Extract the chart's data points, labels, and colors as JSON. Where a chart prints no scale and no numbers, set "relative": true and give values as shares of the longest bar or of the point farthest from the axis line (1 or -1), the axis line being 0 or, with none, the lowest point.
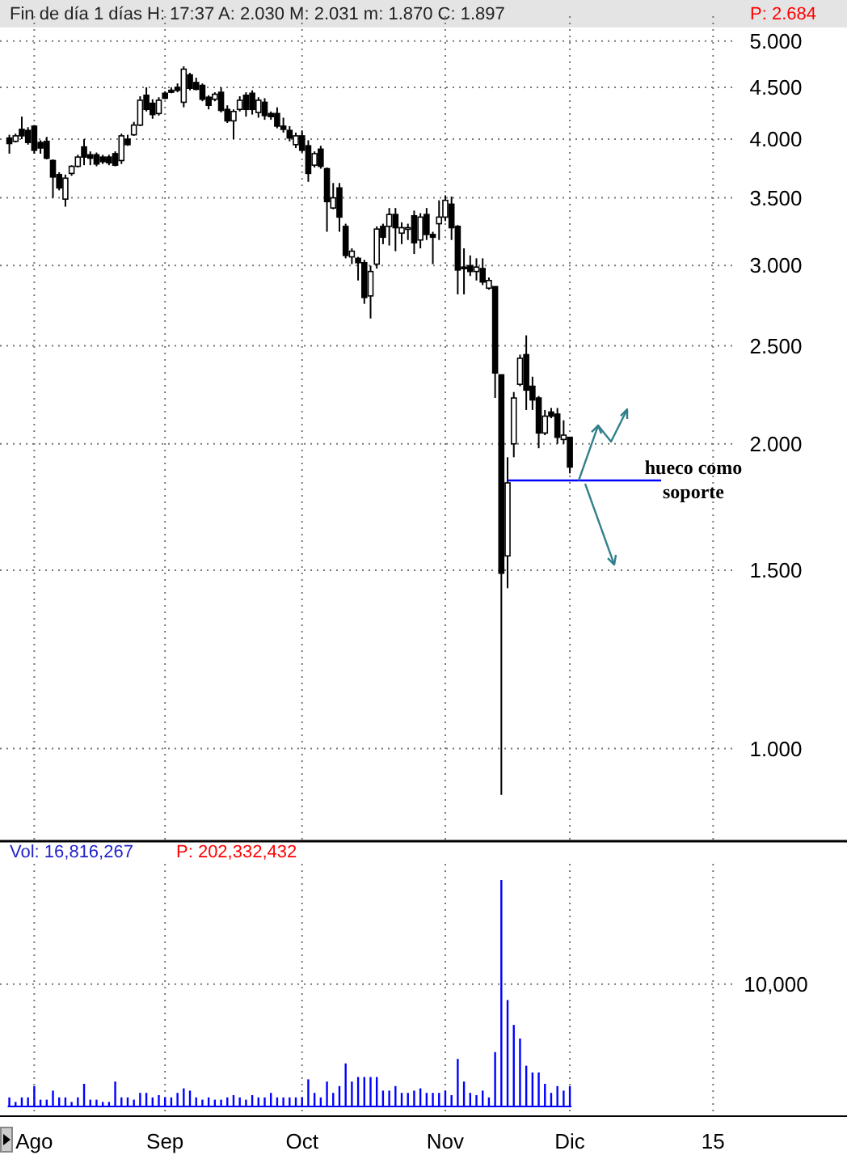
{
  "chart_data": [
    {
      "type": "candlestick",
      "title": "Fin de día 1 días H: 17:37 A: 2.030 M: 2.031 m: 1.870 C: 1.897",
      "subtitle": "P: 2.684",
      "log": "y",
      "grid": true,
      "tick_labels": "y",
      "ylim": [
        0.81,
        5.33
      ],
      "yticks": [
        {
          "value": 1,
          "label": "1.000"
        },
        {
          "value": 1.5,
          "label": "1.500"
        },
        {
          "value": 2,
          "label": "2.000"
        },
        {
          "value": 2.5,
          "label": "2.500"
        },
        {
          "value": 3,
          "label": "3.000"
        },
        {
          "value": 3.5,
          "label": "3.500"
        },
        {
          "value": 4,
          "label": "4.000"
        },
        {
          "value": 4.5,
          "label": "4.500"
        },
        {
          "value": 5,
          "label": "5.000"
        }
      ],
      "ref_lines": [
        {
          "axis": "y",
          "value": 1.84,
          "label": "hueco como soporte",
          "color": "#0000ff"
        }
      ],
      "categories": [
        null,
        null,
        null,
        null,
        null,
        null,
        null,
        null,
        null,
        null,
        null,
        null,
        null,
        null,
        null,
        null,
        null,
        null,
        null,
        null,
        null,
        null,
        null,
        null,
        null,
        null,
        null,
        null,
        null,
        null,
        null,
        null,
        null,
        null,
        null,
        null,
        null,
        null,
        null,
        null,
        null,
        null,
        null,
        null,
        null,
        null,
        null,
        null,
        null,
        null,
        null,
        null,
        null,
        null,
        null,
        null,
        null,
        null,
        null,
        null,
        null,
        null,
        null,
        null,
        null,
        null,
        null,
        null,
        null,
        null,
        null,
        null,
        null,
        null,
        null,
        null,
        null,
        null,
        null,
        null,
        null,
        null,
        null,
        null,
        null,
        null,
        null,
        null,
        null,
        null,
        null,
        null,
        null,
        null,
        null,
        null,
        null,
        null,
        null,
        null,
        null,
        null,
        null,
        null,
        null,
        null,
        null,
        null,
        null,
        null,
        null,
        null,
        null,
        null,
        null,
        null,
        null,
        null,
        null,
        null,
        null,
        null,
        null,
        null,
        null,
        null,
        null,
        null,
        null,
        null,
        null,
        null,
        null,
        null,
        null,
        null
      ],
      "ohlc": [
        null,
        [
          4.01,
          4.04,
          3.87,
          3.96
        ],
        [
          3.98,
          4.05,
          3.97,
          4.03
        ],
        [
          4.09,
          4.21,
          4.0,
          4.03
        ],
        [
          4.08,
          4.11,
          3.95,
          3.97
        ],
        [
          4.12,
          4.13,
          3.87,
          3.9
        ],
        [
          3.97,
          3.99,
          3.87,
          3.92
        ],
        [
          3.98,
          4.02,
          3.82,
          3.83
        ],
        [
          3.81,
          3.82,
          3.5,
          3.67
        ],
        [
          3.69,
          3.71,
          3.56,
          3.58
        ],
        [
          3.49,
          3.69,
          3.43,
          3.66
        ],
        [
          3.7,
          3.77,
          3.68,
          3.76
        ],
        [
          3.76,
          3.86,
          3.75,
          3.84
        ],
        [
          3.93,
          4.0,
          3.77,
          3.84
        ],
        [
          3.86,
          3.89,
          3.77,
          3.83
        ],
        [
          3.86,
          3.88,
          3.76,
          3.78
        ],
        [
          3.84,
          3.86,
          3.78,
          3.8
        ],
        [
          3.84,
          3.86,
          3.77,
          3.79
        ],
        [
          3.87,
          3.89,
          3.76,
          3.77
        ],
        [
          3.81,
          4.05,
          3.78,
          4.03
        ],
        [
          4.0,
          4.04,
          3.94,
          3.95
        ],
        [
          4.04,
          4.16,
          4.03,
          4.13
        ],
        [
          4.13,
          4.41,
          4.12,
          4.37
        ],
        [
          4.42,
          4.5,
          4.26,
          4.28
        ],
        [
          4.34,
          4.38,
          4.19,
          4.23
        ],
        [
          4.24,
          4.4,
          4.22,
          4.37
        ],
        [
          4.44,
          4.46,
          4.38,
          4.39
        ],
        [
          4.47,
          4.5,
          4.44,
          4.45
        ],
        [
          4.5,
          4.54,
          4.45,
          4.47
        ],
        [
          4.35,
          4.72,
          4.3,
          4.69
        ],
        [
          4.63,
          4.65,
          4.47,
          4.49
        ],
        [
          4.55,
          4.6,
          4.47,
          4.48
        ],
        [
          4.52,
          4.54,
          4.36,
          4.38
        ],
        [
          4.4,
          4.42,
          4.28,
          4.32
        ],
        [
          4.38,
          4.45,
          4.36,
          4.43
        ],
        [
          4.45,
          4.5,
          4.25,
          4.27
        ],
        [
          4.28,
          4.32,
          4.15,
          4.17
        ],
        [
          4.17,
          4.28,
          4.0,
          4.26
        ],
        [
          4.28,
          4.41,
          4.26,
          4.37
        ],
        [
          4.42,
          4.45,
          4.21,
          4.28
        ],
        [
          4.44,
          4.47,
          4.23,
          4.28
        ],
        [
          4.25,
          4.4,
          4.2,
          4.37
        ],
        [
          4.35,
          4.39,
          4.18,
          4.22
        ],
        [
          4.24,
          4.26,
          4.18,
          4.21
        ],
        [
          4.24,
          4.3,
          4.1,
          4.12
        ],
        [
          4.12,
          4.2,
          4.06,
          4.09
        ],
        [
          4.08,
          4.12,
          3.98,
          4.01
        ],
        [
          3.95,
          4.06,
          3.92,
          4.03
        ],
        [
          4.03,
          4.08,
          3.88,
          3.9
        ],
        [
          3.94,
          3.99,
          3.63,
          3.7
        ],
        [
          3.77,
          3.89,
          3.75,
          3.87
        ],
        [
          3.91,
          3.94,
          3.74,
          3.76
        ],
        [
          3.74,
          3.75,
          3.24,
          3.47
        ],
        [
          3.42,
          3.62,
          3.41,
          3.5
        ],
        [
          3.58,
          3.62,
          3.24,
          3.35
        ],
        [
          3.28,
          3.3,
          3.05,
          3.07
        ],
        [
          3.06,
          3.12,
          3.01,
          3.1
        ],
        [
          3.05,
          3.06,
          2.9,
          3.02
        ],
        [
          3.02,
          3.04,
          2.75,
          2.79
        ],
        [
          2.8,
          3.0,
          2.66,
          2.96
        ],
        [
          3.01,
          3.28,
          2.98,
          3.26
        ],
        [
          3.28,
          3.3,
          3.15,
          3.2
        ],
        [
          3.28,
          3.42,
          3.14,
          3.37
        ],
        [
          3.37,
          3.42,
          3.1,
          3.27
        ],
        [
          3.23,
          3.31,
          3.15,
          3.27
        ],
        [
          3.27,
          3.3,
          3.18,
          3.27
        ],
        [
          3.36,
          3.4,
          3.08,
          3.16
        ],
        [
          3.18,
          3.38,
          3.12,
          3.35
        ],
        [
          3.37,
          3.42,
          3.18,
          3.22
        ],
        [
          3.22,
          3.24,
          3.01,
          3.2
        ],
        [
          3.3,
          3.48,
          3.18,
          3.35
        ],
        [
          3.35,
          3.52,
          3.32,
          3.48
        ],
        [
          3.45,
          3.51,
          3.18,
          3.27
        ],
        [
          3.28,
          3.29,
          2.81,
          2.97
        ],
        [
          2.99,
          3.12,
          2.81,
          2.98
        ],
        [
          3.0,
          3.07,
          2.93,
          2.96
        ],
        [
          2.96,
          3.05,
          2.9,
          2.99
        ],
        [
          2.98,
          3.05,
          2.87,
          2.89
        ],
        [
          2.85,
          2.92,
          2.84,
          2.9
        ],
        [
          2.86,
          2.86,
          2.22,
          2.35
        ],
        [
          2.34,
          2.34,
          0.9,
          1.49
        ],
        [
          1.55,
          1.94,
          1.44,
          1.83
        ],
        [
          2.0,
          2.25,
          1.94,
          2.22
        ],
        [
          2.29,
          2.45,
          2.28,
          2.43
        ],
        [
          2.45,
          2.56,
          2.16,
          2.26
        ],
        [
          2.28,
          2.33,
          2.16,
          2.21
        ],
        [
          2.22,
          2.23,
          1.98,
          2.05
        ],
        [
          2.05,
          2.16,
          2.04,
          2.13
        ],
        [
          2.15,
          2.17,
          2.12,
          2.13
        ],
        [
          2.14,
          2.17,
          2.0,
          2.03
        ],
        [
          2.02,
          2.11,
          2.0,
          2.04
        ],
        [
          2.03,
          2.031,
          1.87,
          1.897
        ],
        null,
        null,
        null,
        null,
        null,
        null,
        null,
        null,
        null,
        null,
        null,
        null,
        null,
        null,
        null,
        null,
        null,
        null,
        null,
        null,
        null,
        null,
        null,
        null,
        null,
        null,
        null,
        null,
        null,
        null,
        null,
        null,
        null,
        null,
        null,
        null,
        null,
        null,
        null,
        null,
        null,
        null,
        null,
        null
      ]
    },
    {
      "type": "bar",
      "title": "Vol: 16,816,267",
      "subtitle": "P: 202,332,432",
      "relative": true,
      "color": "#0000ff",
      "grid": "x",
      "tick_labels": "x",
      "annotations": [
        "10,000"
      ],
      "categories": [
        null,
        null,
        null,
        null,
        null,
        "Ago",
        null,
        null,
        null,
        null,
        null,
        null,
        null,
        null,
        null,
        null,
        null,
        null,
        null,
        null,
        null,
        null,
        null,
        null,
        null,
        null,
        "Sep",
        null,
        null,
        null,
        null,
        null,
        null,
        null,
        null,
        null,
        null,
        null,
        null,
        null,
        null,
        null,
        null,
        null,
        null,
        null,
        null,
        null,
        "Oct",
        null,
        null,
        null,
        null,
        null,
        null,
        null,
        null,
        null,
        null,
        null,
        null,
        null,
        null,
        null,
        null,
        null,
        null,
        null,
        null,
        null,
        null,
        "Nov",
        null,
        null,
        null,
        null,
        null,
        null,
        null,
        null,
        null,
        null,
        null,
        null,
        null,
        null,
        null,
        null,
        null,
        null,
        null,
        "Dic",
        null,
        null,
        null,
        null,
        null,
        null,
        null,
        null,
        null,
        null,
        null,
        null,
        null,
        null,
        null,
        null,
        null,
        null,
        null,
        null,
        null,
        null,
        "15",
        null,
        null,
        null,
        null,
        null,
        null,
        null,
        null,
        null,
        null,
        null,
        null,
        null,
        null,
        null,
        null,
        null,
        null,
        null,
        null,
        null
      ],
      "values": [
        null,
        0.04,
        0.02,
        0.04,
        0.04,
        0.09,
        0.03,
        0.03,
        0.07,
        0.04,
        0.04,
        0.02,
        0.04,
        0.1,
        0.03,
        0.03,
        0.02,
        0.02,
        0.11,
        0.04,
        0.04,
        0.03,
        0.06,
        0.06,
        0.04,
        0.05,
        0.04,
        0.04,
        0.06,
        0.08,
        0.07,
        0.04,
        0.03,
        0.04,
        0.03,
        0.03,
        0.04,
        0.05,
        0.04,
        0.03,
        0.05,
        0.04,
        0.04,
        0.06,
        0.04,
        0.04,
        0.04,
        0.04,
        0.04,
        0.12,
        0.06,
        0.04,
        0.11,
        0.06,
        0.09,
        0.19,
        0.11,
        0.13,
        0.13,
        0.13,
        0.13,
        0.07,
        0.07,
        0.09,
        0.06,
        0.06,
        0.07,
        0.08,
        0.06,
        0.06,
        0.06,
        0.07,
        0.05,
        0.21,
        0.11,
        0.06,
        0.05,
        0.07,
        0.04,
        0.24,
        1,
        0.47,
        0.36,
        0.3,
        0.18,
        0.15,
        0.15,
        0.1,
        0.06,
        0.09,
        0.07,
        0.09,
        null,
        null,
        null,
        null,
        null,
        null,
        null,
        null,
        null,
        null,
        null,
        null,
        null,
        null,
        null,
        null,
        null,
        null,
        null,
        null,
        null,
        null,
        null,
        null,
        null,
        null,
        null,
        null,
        null,
        null,
        null,
        null,
        null,
        null,
        null,
        null,
        null,
        null,
        null,
        null,
        null,
        null,
        null,
        null
      ]
    }
  ]
}
